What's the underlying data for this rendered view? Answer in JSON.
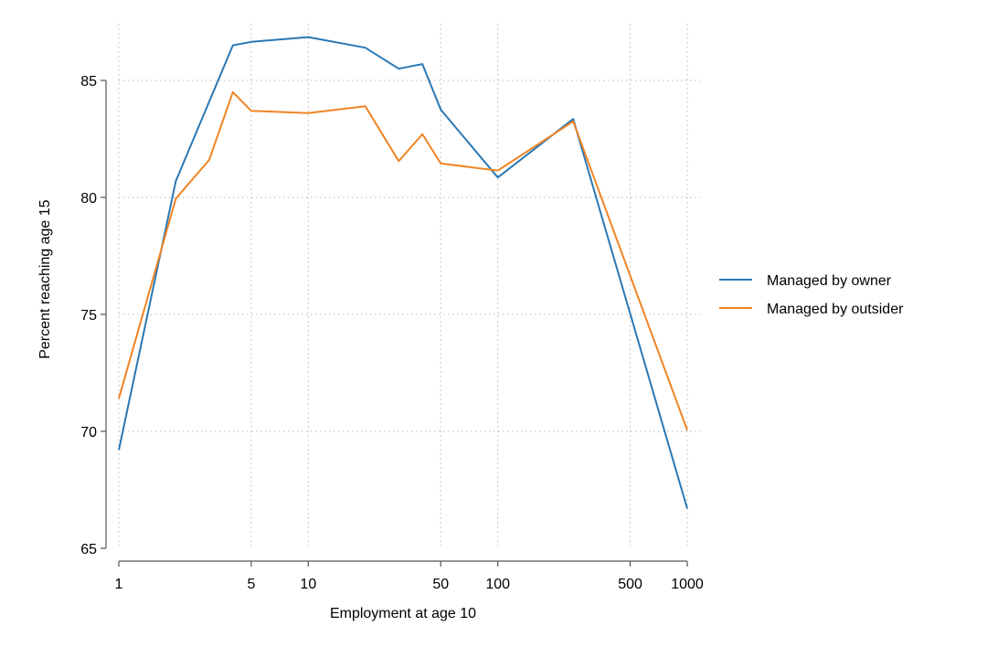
{
  "chart_data": {
    "type": "line",
    "title": "",
    "xlabel": "Employment at age 10",
    "ylabel": "Percent reaching age 15",
    "x_scale": "log",
    "xlim": [
      1,
      1000
    ],
    "ylim": [
      65,
      87
    ],
    "x_ticks": [
      1,
      5,
      10,
      50,
      100,
      500,
      1000
    ],
    "x_tick_labels": [
      "1",
      "5",
      "10",
      "50",
      "100",
      "500",
      "1000"
    ],
    "y_ticks": [
      65,
      70,
      75,
      80,
      85
    ],
    "y_tick_labels": [
      "65",
      "70",
      "75",
      "80",
      "85"
    ],
    "grid": true,
    "legend_position": "right",
    "series": [
      {
        "name": "Managed by owner",
        "color": "#2a78b5",
        "x": [
          1,
          2,
          4,
          5,
          10,
          20,
          30,
          40,
          50,
          100,
          250,
          1000
        ],
        "y": [
          69.2,
          80.7,
          86.5,
          86.65,
          86.85,
          86.4,
          85.5,
          85.7,
          83.75,
          80.85,
          83.35,
          66.7
        ]
      },
      {
        "name": "Managed by outsider",
        "color": "#f08424",
        "x": [
          1,
          2,
          3,
          4,
          5,
          10,
          20,
          30,
          40,
          50,
          100,
          250,
          1000
        ],
        "y": [
          71.4,
          79.95,
          81.6,
          84.5,
          83.7,
          83.6,
          83.9,
          81.55,
          82.7,
          81.45,
          81.15,
          83.25,
          70.05
        ]
      }
    ]
  }
}
